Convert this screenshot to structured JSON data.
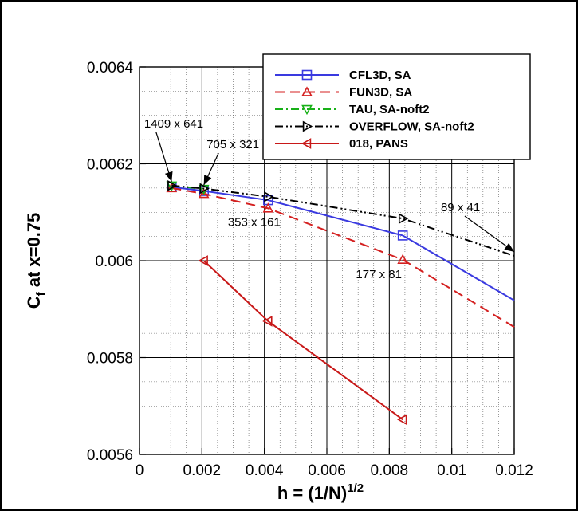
{
  "chart_data": {
    "type": "line",
    "xlabel": "h = (1/N)",
    "xlabel_exponent": "1/2",
    "ylabel": "C",
    "ylabel_subscript": "f",
    "ylabel_suffix": " at x=0.75",
    "xlim": [
      0,
      0.012
    ],
    "ylim": [
      0.0056,
      0.0064
    ],
    "x_ticks": [
      "0",
      "0.002",
      "0.004",
      "0.006",
      "0.008",
      "0.01",
      "0.012"
    ],
    "y_ticks": [
      "0.0056",
      "0.0058",
      "0.006",
      "0.0062",
      "0.0064"
    ],
    "grid": true,
    "legend_position": "top-right",
    "series": [
      {
        "name": "CFL3D, SA",
        "color": "#3a3ae0",
        "dash": "solid",
        "marker": "square",
        "x": [
          0.00103,
          0.00206,
          0.00412,
          0.00843,
          0.012
        ],
        "y": [
          0.006152,
          0.006144,
          0.006125,
          0.006052,
          0.005918
        ],
        "marker_points": 4
      },
      {
        "name": "FUN3D, SA",
        "color": "#d42020",
        "dash": "dashed",
        "marker": "triangle-up",
        "x": [
          0.00103,
          0.00206,
          0.00412,
          0.00843,
          0.012
        ],
        "y": [
          0.00615,
          0.006138,
          0.006108,
          0.006002,
          0.005863
        ],
        "marker_points": 4
      },
      {
        "name": "TAU, SA-noft2",
        "color": "#18b018",
        "dash": "dashdot",
        "marker": "triangle-down",
        "x": [
          0.00103,
          0.00206
        ],
        "y": [
          0.006155,
          0.006148
        ],
        "marker_points": 2
      },
      {
        "name": "OVERFLOW, SA-noft2",
        "color": "#000000",
        "dash": "dashdotdot",
        "marker": "triangle-right",
        "x": [
          0.00103,
          0.00206,
          0.00412,
          0.00843,
          0.012
        ],
        "y": [
          0.006155,
          0.006149,
          0.006132,
          0.006087,
          0.00601
        ],
        "marker_points": 4
      },
      {
        "name": "018, PANS",
        "color": "#c81818",
        "dash": "solid",
        "marker": "triangle-left",
        "x": [
          0.00206,
          0.00412,
          0.00843
        ],
        "y": [
          0.006,
          0.005875,
          0.005672
        ],
        "marker_points": 3
      }
    ],
    "annotations": [
      {
        "text": "1409 x 641",
        "x": 0.00103,
        "y": 0.006155,
        "label_x": 0.00015,
        "label_y": 0.006275,
        "arrow": true
      },
      {
        "text": "705 x 321",
        "x": 0.00206,
        "y": 0.006148,
        "label_x": 0.00215,
        "label_y": 0.006232,
        "arrow": true
      },
      {
        "text": "353 x 161",
        "x": 0.00412,
        "y": 0.006108,
        "label_x": 0.00283,
        "label_y": 0.006072,
        "arrow": false
      },
      {
        "text": "177 x 81",
        "x": 0.00843,
        "y": 0.006002,
        "label_x": 0.00693,
        "label_y": 0.005964,
        "arrow": false
      },
      {
        "text": "89 x 41",
        "x": 0.012,
        "y": 0.00601,
        "label_x": 0.00965,
        "label_y": 0.006102,
        "arrow": true
      }
    ]
  }
}
